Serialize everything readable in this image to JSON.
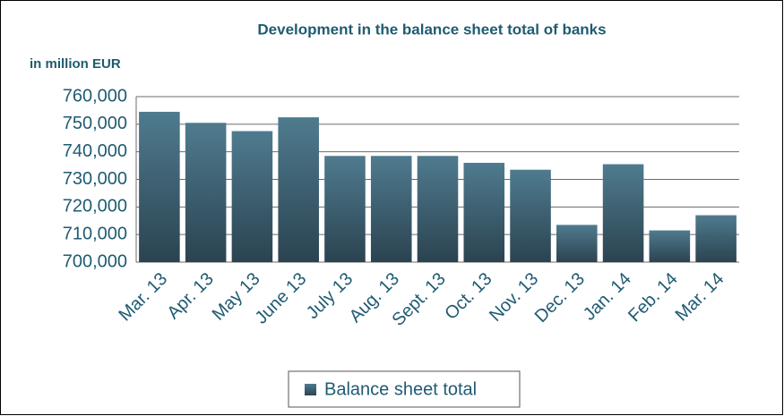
{
  "chart_data": {
    "type": "bar",
    "title": "Development in the balance sheet total of banks",
    "y_label": "in million EUR",
    "categories": [
      "Mar. 13",
      "Apr. 13",
      "May 13",
      "June 13",
      "July 13",
      "Aug. 13",
      "Sept. 13",
      "Oct. 13",
      "Nov. 13",
      "Dec. 13",
      "Jan. 14",
      "Feb. 14",
      "Mar. 14"
    ],
    "series": [
      {
        "name": "Balance sheet total",
        "color": "#4f7b8f",
        "values": [
          754500,
          750500,
          747500,
          752500,
          738500,
          738500,
          738500,
          736000,
          733500,
          713500,
          735500,
          711500,
          717000
        ]
      }
    ],
    "ylim": [
      700000,
      760000
    ],
    "yticks": [
      {
        "value": 700000,
        "label": "700,000"
      },
      {
        "value": 710000,
        "label": "710,000"
      },
      {
        "value": 720000,
        "label": "720,000"
      },
      {
        "value": 730000,
        "label": "730,000"
      },
      {
        "value": 740000,
        "label": "740,000"
      },
      {
        "value": 750000,
        "label": "750,000"
      },
      {
        "value": 760000,
        "label": "760,000"
      }
    ],
    "grid": true,
    "legend": "bottom"
  }
}
